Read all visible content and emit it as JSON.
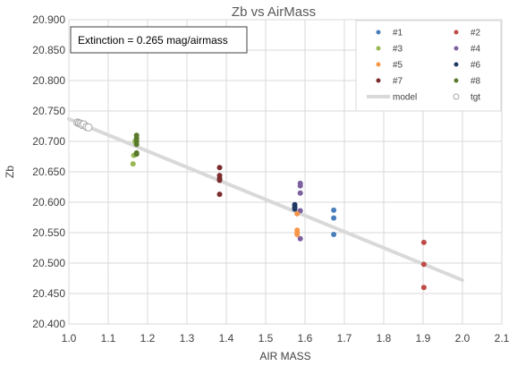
{
  "chart_data": {
    "type": "scatter",
    "title": "Zb vs AirMass",
    "xlabel": "AIR MASS",
    "ylabel": "Zb",
    "xlim": [
      1.0,
      2.1
    ],
    "ylim": [
      20.4,
      20.9
    ],
    "xticks": [
      "1.0",
      "1.1",
      "1.2",
      "1.3",
      "1.4",
      "1.5",
      "1.6",
      "1.7",
      "1.8",
      "1.9",
      "2.0",
      "2.1"
    ],
    "yticks": [
      "20.400",
      "20.450",
      "20.500",
      "20.550",
      "20.600",
      "20.650",
      "20.700",
      "20.750",
      "20.800",
      "20.850",
      "20.900"
    ],
    "grid": true,
    "legend_position": "top-right",
    "annotation": "Extinction = 0.265 mag/airmass",
    "series": [
      {
        "name": "#1",
        "color": "#4a7ebb",
        "marker": "filled",
        "x": [
          1.673,
          1.673,
          1.673
        ],
        "y": [
          20.587,
          20.574,
          20.547
        ]
      },
      {
        "name": "#2",
        "color": "#be4b48",
        "marker": "filled",
        "x": [
          1.902,
          1.902,
          1.902
        ],
        "y": [
          20.534,
          20.498,
          20.46
        ]
      },
      {
        "name": "#3",
        "color": "#98b954",
        "marker": "filled",
        "x": [
          1.163,
          1.165,
          1.168
        ],
        "y": [
          20.663,
          20.677,
          20.7
        ]
      },
      {
        "name": "#4",
        "color": "#7d60a0",
        "marker": "filled",
        "x": [
          1.588,
          1.588,
          1.588,
          1.588,
          1.588
        ],
        "y": [
          20.631,
          20.627,
          20.615,
          20.586,
          20.54
        ]
      },
      {
        "name": "#5",
        "color": "#f79646",
        "marker": "filled",
        "x": [
          1.58,
          1.58,
          1.58,
          1.58
        ],
        "y": [
          20.581,
          20.554,
          20.55,
          20.547
        ]
      },
      {
        "name": "#6",
        "color": "#1f3864",
        "marker": "filled",
        "x": [
          1.574,
          1.574,
          1.574
        ],
        "y": [
          20.596,
          20.592,
          20.589
        ]
      },
      {
        "name": "#7",
        "color": "#7b2c2c",
        "marker": "filled",
        "x": [
          1.383,
          1.383,
          1.383,
          1.383,
          1.383
        ],
        "y": [
          20.657,
          20.644,
          20.639,
          20.636,
          20.613
        ]
      },
      {
        "name": "#8",
        "color": "#5a7a2b",
        "marker": "filled",
        "x": [
          1.172,
          1.172,
          1.172,
          1.172,
          1.172,
          1.172
        ],
        "y": [
          20.71,
          20.705,
          20.7,
          20.695,
          20.681,
          20.679
        ]
      },
      {
        "name": "model",
        "color": "#d9d9d9",
        "marker": "line",
        "x": [
          1.0,
          2.0
        ],
        "y": [
          20.737,
          20.472
        ]
      },
      {
        "name": "tgt",
        "color": "#a6a6a6",
        "marker": "open",
        "x": [
          1.022,
          1.026,
          1.03,
          1.034,
          1.038,
          1.045,
          1.05
        ],
        "y": [
          20.731,
          20.73,
          20.729,
          20.727,
          20.728,
          20.724,
          20.723
        ]
      }
    ]
  }
}
